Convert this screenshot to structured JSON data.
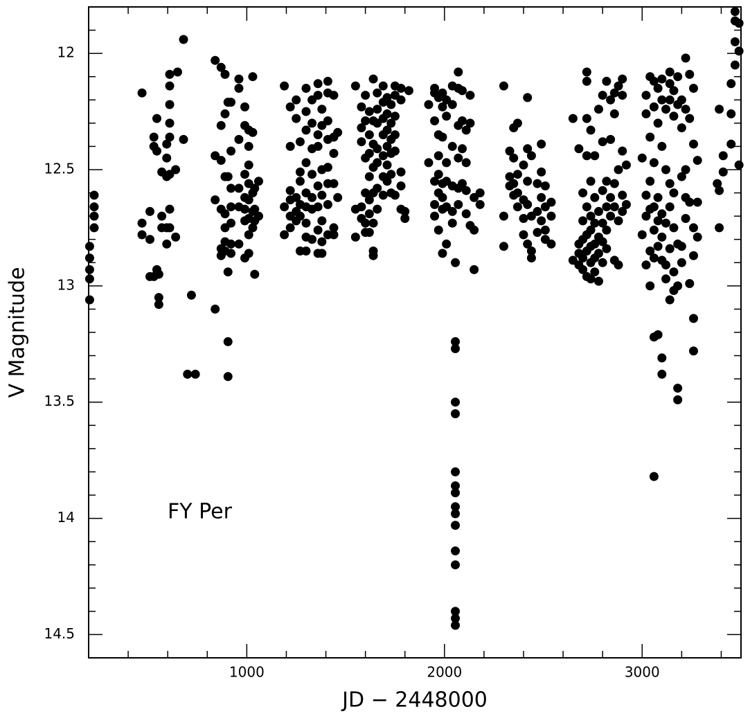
{
  "chart_data": {
    "type": "scatter",
    "annotation": "FY Per",
    "x_label": "JD − 2448000",
    "y_label": "V Magnitude",
    "color": "#000000",
    "xlim": [
      200,
      3500
    ],
    "ylim": [
      14.6,
      11.8
    ],
    "xticks": [
      1000,
      2000,
      3000
    ],
    "xminorticks": [
      400,
      600,
      800,
      1200,
      1400,
      1600,
      1800,
      2200,
      2400,
      2600,
      2800,
      3200,
      3400
    ],
    "yticks": [
      12,
      12.5,
      13,
      13.5,
      14,
      14.5
    ],
    "yminorticks": [
      11.9,
      12.1,
      12.2,
      12.3,
      12.4,
      12.6,
      12.7,
      12.8,
      12.9,
      13.1,
      13.2,
      13.3,
      13.4,
      13.6,
      13.7,
      13.8,
      13.9,
      14.1,
      14.2,
      14.3,
      14.4
    ],
    "x": [
      205,
      205,
      205,
      205,
      205,
      228,
      228,
      228,
      228,
      470,
      470,
      470,
      510,
      510,
      510,
      530,
      530,
      530,
      545,
      545,
      545,
      555,
      555,
      555,
      570,
      570,
      570,
      595,
      595,
      595,
      595,
      595,
      610,
      610,
      610,
      610,
      610,
      610,
      610,
      610,
      640,
      640,
      650,
      680,
      680,
      700,
      720,
      740,
      840,
      840,
      840,
      840,
      870,
      870,
      870,
      870,
      870,
      870,
      890,
      890,
      890,
      890,
      890,
      890,
      890,
      905,
      905,
      905,
      905,
      905,
      920,
      920,
      920,
      920,
      920,
      920,
      920,
      960,
      960,
      960,
      960,
      960,
      960,
      990,
      990,
      990,
      990,
      990,
      990,
      990,
      1010,
      1010,
      1010,
      1010,
      1010,
      1010,
      1010,
      1010,
      1030,
      1030,
      1030,
      1030,
      1030,
      1040,
      1040,
      1040,
      1040,
      1060,
      1060,
      1190,
      1190,
      1190,
      1220,
      1220,
      1220,
      1220,
      1220,
      1220,
      1250,
      1250,
      1250,
      1250,
      1250,
      1270,
      1270,
      1270,
      1270,
      1270,
      1270,
      1300,
      1300,
      1300,
      1300,
      1300,
      1300,
      1300,
      1300,
      1300,
      1330,
      1330,
      1330,
      1330,
      1330,
      1330,
      1330,
      1360,
      1360,
      1360,
      1360,
      1360,
      1360,
      1360,
      1360,
      1380,
      1380,
      1380,
      1380,
      1380,
      1380,
      1380,
      1410,
      1410,
      1410,
      1410,
      1410,
      1410,
      1410,
      1410,
      1440,
      1440,
      1440,
      1440,
      1440,
      1440,
      1460,
      1460,
      1550,
      1550,
      1550,
      1580,
      1580,
      1580,
      1580,
      1580,
      1600,
      1600,
      1600,
      1600,
      1600,
      1600,
      1620,
      1620,
      1620,
      1620,
      1620,
      1620,
      1620,
      1640,
      1640,
      1640,
      1640,
      1640,
      1640,
      1640,
      1640,
      1660,
      1660,
      1660,
      1660,
      1660,
      1660,
      1660,
      1690,
      1690,
      1690,
      1690,
      1690,
      1690,
      1690,
      1710,
      1710,
      1710,
      1710,
      1710,
      1710,
      1730,
      1730,
      1730,
      1730,
      1730,
      1730,
      1750,
      1750,
      1750,
      1750,
      1750,
      1750,
      1780,
      1780,
      1780,
      1780,
      1780,
      1800,
      1800,
      1820,
      1920,
      1920,
      1950,
      1950,
      1950,
      1950,
      1950,
      1950,
      1970,
      1970,
      1970,
      1970,
      1970,
      1970,
      1990,
      1990,
      1990,
      1990,
      1990,
      1990,
      1990,
      2010,
      2010,
      2010,
      2010,
      2010,
      2010,
      2040,
      2040,
      2040,
      2040,
      2040,
      2040,
      2055,
      2055,
      2055,
      2055,
      2055,
      2055,
      2055,
      2055,
      2055,
      2055,
      2055,
      2055,
      2055,
      2055,
      2055,
      2055,
      2070,
      2070,
      2070,
      2070,
      2070,
      2070,
      2090,
      2090,
      2090,
      2090,
      2110,
      2110,
      2110,
      2110,
      2130,
      2130,
      2130,
      2150,
      2150,
      2150,
      2180,
      2180,
      2300,
      2300,
      2300,
      2330,
      2330,
      2330,
      2350,
      2350,
      2350,
      2350,
      2370,
      2370,
      2370,
      2370,
      2400,
      2400,
      2400,
      2400,
      2420,
      2420,
      2420,
      2420,
      2420,
      2440,
      2440,
      2440,
      2440,
      2470,
      2470,
      2470,
      2490,
      2490,
      2490,
      2490,
      2510,
      2510,
      2510,
      2510,
      2540,
      2540,
      2540,
      2650,
      2650,
      2680,
      2680,
      2680,
      2680,
      2700,
      2700,
      2700,
      2700,
      2700,
      2720,
      2720,
      2720,
      2720,
      2720,
      2720,
      2720,
      2720,
      2740,
      2740,
      2740,
      2740,
      2740,
      2740,
      2740,
      2760,
      2760,
      2760,
      2760,
      2760,
      2760,
      2780,
      2780,
      2780,
      2780,
      2780,
      2800,
      2800,
      2800,
      2800,
      2800,
      2800,
      2820,
      2820,
      2820,
      2820,
      2820,
      2840,
      2840,
      2840,
      2840,
      2860,
      2860,
      2860,
      2860,
      2860,
      2880,
      2880,
      2880,
      2880,
      2900,
      2900,
      2900,
      2900,
      2900,
      2920,
      2920,
      3000,
      3000,
      3020,
      3020,
      3020,
      3020,
      3020,
      3040,
      3040,
      3040,
      3040,
      3040,
      3040,
      3060,
      3060,
      3060,
      3060,
      3060,
      3060,
      3060,
      3060,
      3080,
      3080,
      3080,
      3080,
      3080,
      3080,
      3100,
      3100,
      3100,
      3100,
      3100,
      3100,
      3100,
      3100,
      3120,
      3120,
      3120,
      3120,
      3120,
      3140,
      3140,
      3140,
      3140,
      3140,
      3140,
      3140,
      3160,
      3160,
      3160,
      3160,
      3160,
      3160,
      3180,
      3180,
      3180,
      3180,
      3180,
      3180,
      3200,
      3200,
      3200,
      3200,
      3200,
      3220,
      3220,
      3220,
      3220,
      3220,
      3240,
      3240,
      3240,
      3240,
      3260,
      3260,
      3260,
      3260,
      3260,
      3260,
      3280,
      3280,
      3280,
      3380,
      3390,
      3390,
      3390,
      3410,
      3410,
      3450,
      3450,
      3450,
      3470,
      3470,
      3470,
      3470,
      3490,
      3490,
      3490
    ],
    "values": [
      12.83,
      12.88,
      12.93,
      12.97,
      13.06,
      12.61,
      12.66,
      12.7,
      12.75,
      12.17,
      12.73,
      12.78,
      12.68,
      12.8,
      12.96,
      12.36,
      12.4,
      12.96,
      12.28,
      12.42,
      12.93,
      13.05,
      13.08,
      12.95,
      12.51,
      12.75,
      12.7,
      12.39,
      12.45,
      12.53,
      12.75,
      12.82,
      12.09,
      12.14,
      12.22,
      12.3,
      12.36,
      12.52,
      12.67,
      12.75,
      12.5,
      12.79,
      12.08,
      11.94,
      12.37,
      13.38,
      13.04,
      13.38,
      12.03,
      12.44,
      12.63,
      13.1,
      12.06,
      12.31,
      12.46,
      12.67,
      12.84,
      12.87,
      12.09,
      12.26,
      12.53,
      12.69,
      12.75,
      12.81,
      12.85,
      12.21,
      12.53,
      12.94,
      13.24,
      13.39,
      12.21,
      12.42,
      12.58,
      12.66,
      12.73,
      12.82,
      12.86,
      12.11,
      12.15,
      12.37,
      12.58,
      12.66,
      12.82,
      12.23,
      12.31,
      12.52,
      12.62,
      12.67,
      12.72,
      12.88,
      12.33,
      12.4,
      12.48,
      12.56,
      12.63,
      12.71,
      12.78,
      12.86,
      12.1,
      12.34,
      12.6,
      12.68,
      12.75,
      12.58,
      12.67,
      12.72,
      12.95,
      12.55,
      12.7,
      12.14,
      12.66,
      12.78,
      12.23,
      12.4,
      12.59,
      12.63,
      12.7,
      12.75,
      12.2,
      12.28,
      12.62,
      12.68,
      12.72,
      12.38,
      12.51,
      12.55,
      12.65,
      12.7,
      12.85,
      12.15,
      12.25,
      12.33,
      12.47,
      12.6,
      12.66,
      12.73,
      12.79,
      12.85,
      12.2,
      12.3,
      12.41,
      12.52,
      12.62,
      12.67,
      12.8,
      12.13,
      12.18,
      12.35,
      12.4,
      12.57,
      12.66,
      12.76,
      12.86,
      12.24,
      12.31,
      12.5,
      12.61,
      12.72,
      12.81,
      12.86,
      12.12,
      12.17,
      12.29,
      12.37,
      12.49,
      12.56,
      12.65,
      12.78,
      12.18,
      12.36,
      12.43,
      12.56,
      12.75,
      12.78,
      12.34,
      12.62,
      12.14,
      12.67,
      12.79,
      12.23,
      12.32,
      12.38,
      12.66,
      12.71,
      12.18,
      12.29,
      12.45,
      12.6,
      12.73,
      12.77,
      12.25,
      12.35,
      12.43,
      12.53,
      12.63,
      12.69,
      12.77,
      12.11,
      12.29,
      12.39,
      12.49,
      12.6,
      12.73,
      12.85,
      12.87,
      12.17,
      12.24,
      12.3,
      12.41,
      12.47,
      12.58,
      12.67,
      12.14,
      12.21,
      12.28,
      12.35,
      12.44,
      12.53,
      12.61,
      12.19,
      12.26,
      12.33,
      12.4,
      12.48,
      12.55,
      12.22,
      12.3,
      12.37,
      12.43,
      12.52,
      12.6,
      12.14,
      12.18,
      12.27,
      12.35,
      12.42,
      12.61,
      12.15,
      12.2,
      12.51,
      12.57,
      12.67,
      12.68,
      12.71,
      12.16,
      12.22,
      12.47,
      12.15,
      12.17,
      12.29,
      12.55,
      12.65,
      12.7,
      12.19,
      12.35,
      12.44,
      12.52,
      12.6,
      12.76,
      12.17,
      12.23,
      12.36,
      12.56,
      12.62,
      12.67,
      12.86,
      12.2,
      12.27,
      12.47,
      12.55,
      12.66,
      12.82,
      12.14,
      12.22,
      12.4,
      12.57,
      12.68,
      12.73,
      13.24,
      13.27,
      13.5,
      13.55,
      13.8,
      13.86,
      13.89,
      13.95,
      13.98,
      14.03,
      14.14,
      14.2,
      14.4,
      14.43,
      14.46,
      12.9,
      12.08,
      12.15,
      12.31,
      12.45,
      12.58,
      12.65,
      12.16,
      12.29,
      12.41,
      12.56,
      12.33,
      12.47,
      12.59,
      12.69,
      12.18,
      12.3,
      12.74,
      12.62,
      12.76,
      12.93,
      12.6,
      12.65,
      12.14,
      12.7,
      12.83,
      12.42,
      12.53,
      12.57,
      12.32,
      12.45,
      12.56,
      12.61,
      12.3,
      12.52,
      12.6,
      12.66,
      12.48,
      12.63,
      12.71,
      12.78,
      12.19,
      12.41,
      12.55,
      12.65,
      12.82,
      12.44,
      12.7,
      12.85,
      12.88,
      12.56,
      12.68,
      12.77,
      12.39,
      12.51,
      12.62,
      12.72,
      12.57,
      12.66,
      12.76,
      12.8,
      12.64,
      12.7,
      12.82,
      12.28,
      12.89,
      12.41,
      12.82,
      12.86,
      12.91,
      12.6,
      12.72,
      12.8,
      12.88,
      12.93,
      12.08,
      12.12,
      12.28,
      12.44,
      12.66,
      12.78,
      12.85,
      12.96,
      12.33,
      12.55,
      12.7,
      12.76,
      12.83,
      12.9,
      12.97,
      12.44,
      12.62,
      12.73,
      12.82,
      12.88,
      12.94,
      12.24,
      12.68,
      12.79,
      12.86,
      12.98,
      12.18,
      12.38,
      12.59,
      12.73,
      12.81,
      12.9,
      12.12,
      12.55,
      12.66,
      12.76,
      12.84,
      12.2,
      12.37,
      12.62,
      12.7,
      12.17,
      12.26,
      12.56,
      12.66,
      12.89,
      12.14,
      12.5,
      12.72,
      12.91,
      12.11,
      12.18,
      12.42,
      12.61,
      12.68,
      12.48,
      12.65,
      12.45,
      12.78,
      12.18,
      12.26,
      12.61,
      12.7,
      12.91,
      12.1,
      12.36,
      12.55,
      12.67,
      12.85,
      13.0,
      12.12,
      12.23,
      12.47,
      12.66,
      12.76,
      12.88,
      13.22,
      13.82,
      12.15,
      12.3,
      12.62,
      12.72,
      12.83,
      13.21,
      12.11,
      12.2,
      12.4,
      12.69,
      12.79,
      12.89,
      13.31,
      13.38,
      12.24,
      12.5,
      12.73,
      12.97,
      12.91,
      12.08,
      12.13,
      12.2,
      12.56,
      12.66,
      12.84,
      13.06,
      12.16,
      12.27,
      12.6,
      12.75,
      12.94,
      13.02,
      12.1,
      12.22,
      12.82,
      13.0,
      13.44,
      13.49,
      12.2,
      12.32,
      12.53,
      12.83,
      12.9,
      12.02,
      12.24,
      12.5,
      12.62,
      12.71,
      12.09,
      12.28,
      12.64,
      12.99,
      12.15,
      12.39,
      12.75,
      12.87,
      13.14,
      13.28,
      12.46,
      12.64,
      12.79,
      12.56,
      12.24,
      12.59,
      12.75,
      12.44,
      12.51,
      12.13,
      12.39,
      12.26,
      11.82,
      11.86,
      11.95,
      12.05,
      11.87,
      11.99,
      12.48
    ]
  }
}
